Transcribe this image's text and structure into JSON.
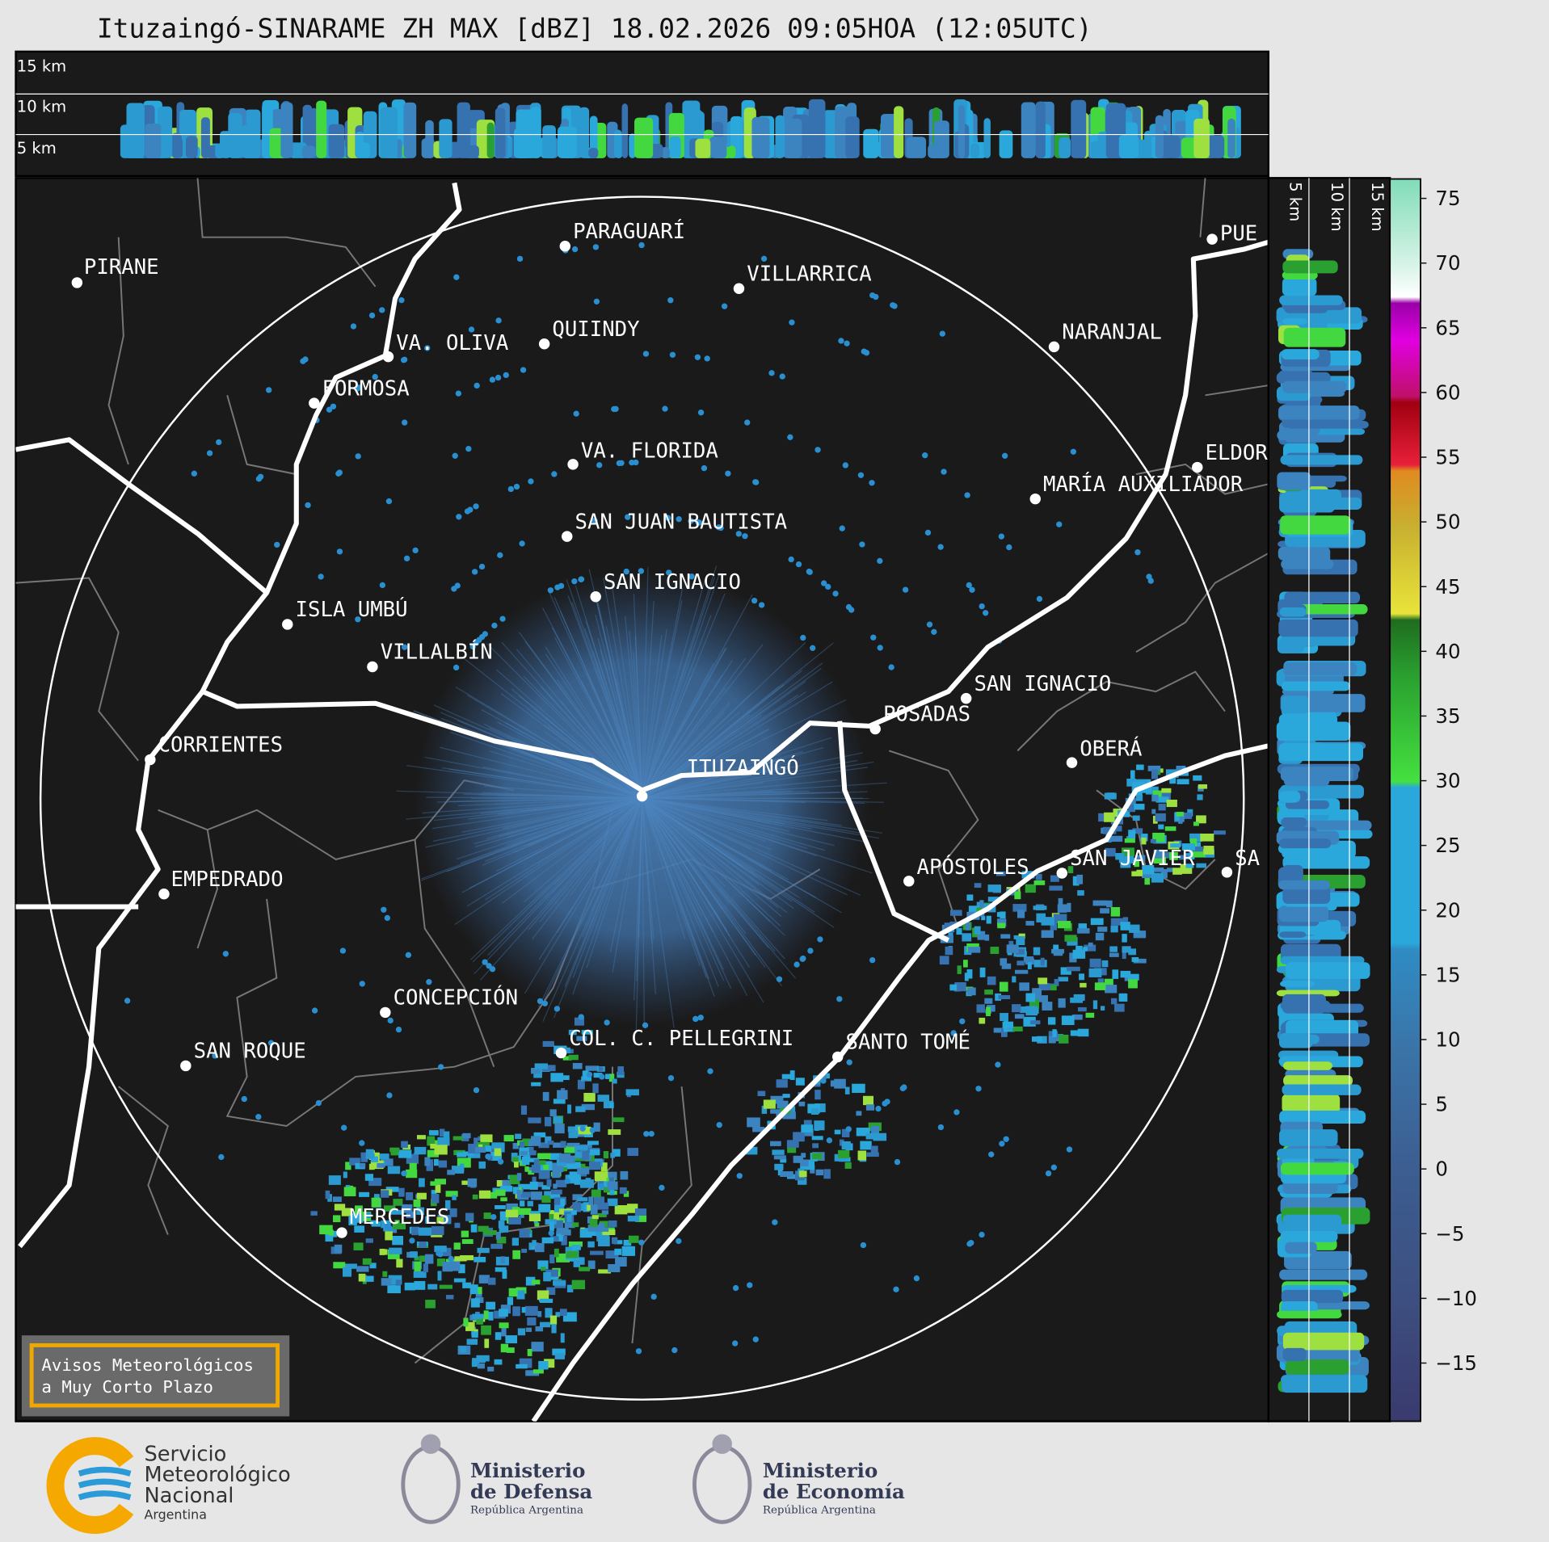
{
  "title": "Ituzaingó-SINARAME ZH MAX [dBZ] 18.02.2026 09:05HOA (12:05UTC)",
  "top_panel": {
    "height_labels": [
      "15 km",
      "10 km",
      "5 km"
    ]
  },
  "side_panel": {
    "height_labels": [
      "5 km",
      "10 km",
      "15 km"
    ]
  },
  "colorbar": {
    "lim": [
      -19.5,
      76.5
    ],
    "ticks": [
      {
        "value": -15,
        "label": "−15"
      },
      {
        "value": -10,
        "label": "−10"
      },
      {
        "value": -5,
        "label": "−5"
      },
      0,
      5,
      10,
      15,
      20,
      25,
      30,
      35,
      40,
      45,
      50,
      55,
      60,
      65,
      70,
      75
    ]
  },
  "cities": [
    "PIRANE",
    "PARAGUARÍ",
    "VILLARRICA",
    "VA. OLIVA",
    "QUIINDY",
    "NARANJAL",
    "FORMOSA",
    "VA. FLORIDA",
    "ELDOR",
    "MARÍA AUXILIADOR",
    "SAN JUAN BAUTISTA",
    "SAN IGNACIO",
    "ISLA UMBÚ",
    "VILLALBÍN",
    "SAN IGNACIO",
    "POSADAS",
    "CORRIENTES",
    "OBERÁ",
    "ITUZAINGÓ",
    "APÓSTOLES",
    "SAN JAVIER",
    "SA",
    "EMPEDRADO",
    "CONCEPCIÓN",
    "COL. C. PELLEGRINI",
    "SANTO TOMÉ",
    "SAN ROQUE",
    "MERCEDES",
    "PUE"
  ],
  "warning": {
    "lines": [
      "Avisos Meteorológicos",
      "a Muy Corto Plazo"
    ]
  },
  "logos": {
    "smn": [
      "Servicio",
      "Meteorológico",
      "Nacional",
      "Argentina"
    ],
    "defensa": [
      "Ministerio",
      "de Defensa",
      "República Argentina"
    ],
    "economia": [
      "Ministerio",
      "de Economía",
      "República Argentina"
    ]
  }
}
